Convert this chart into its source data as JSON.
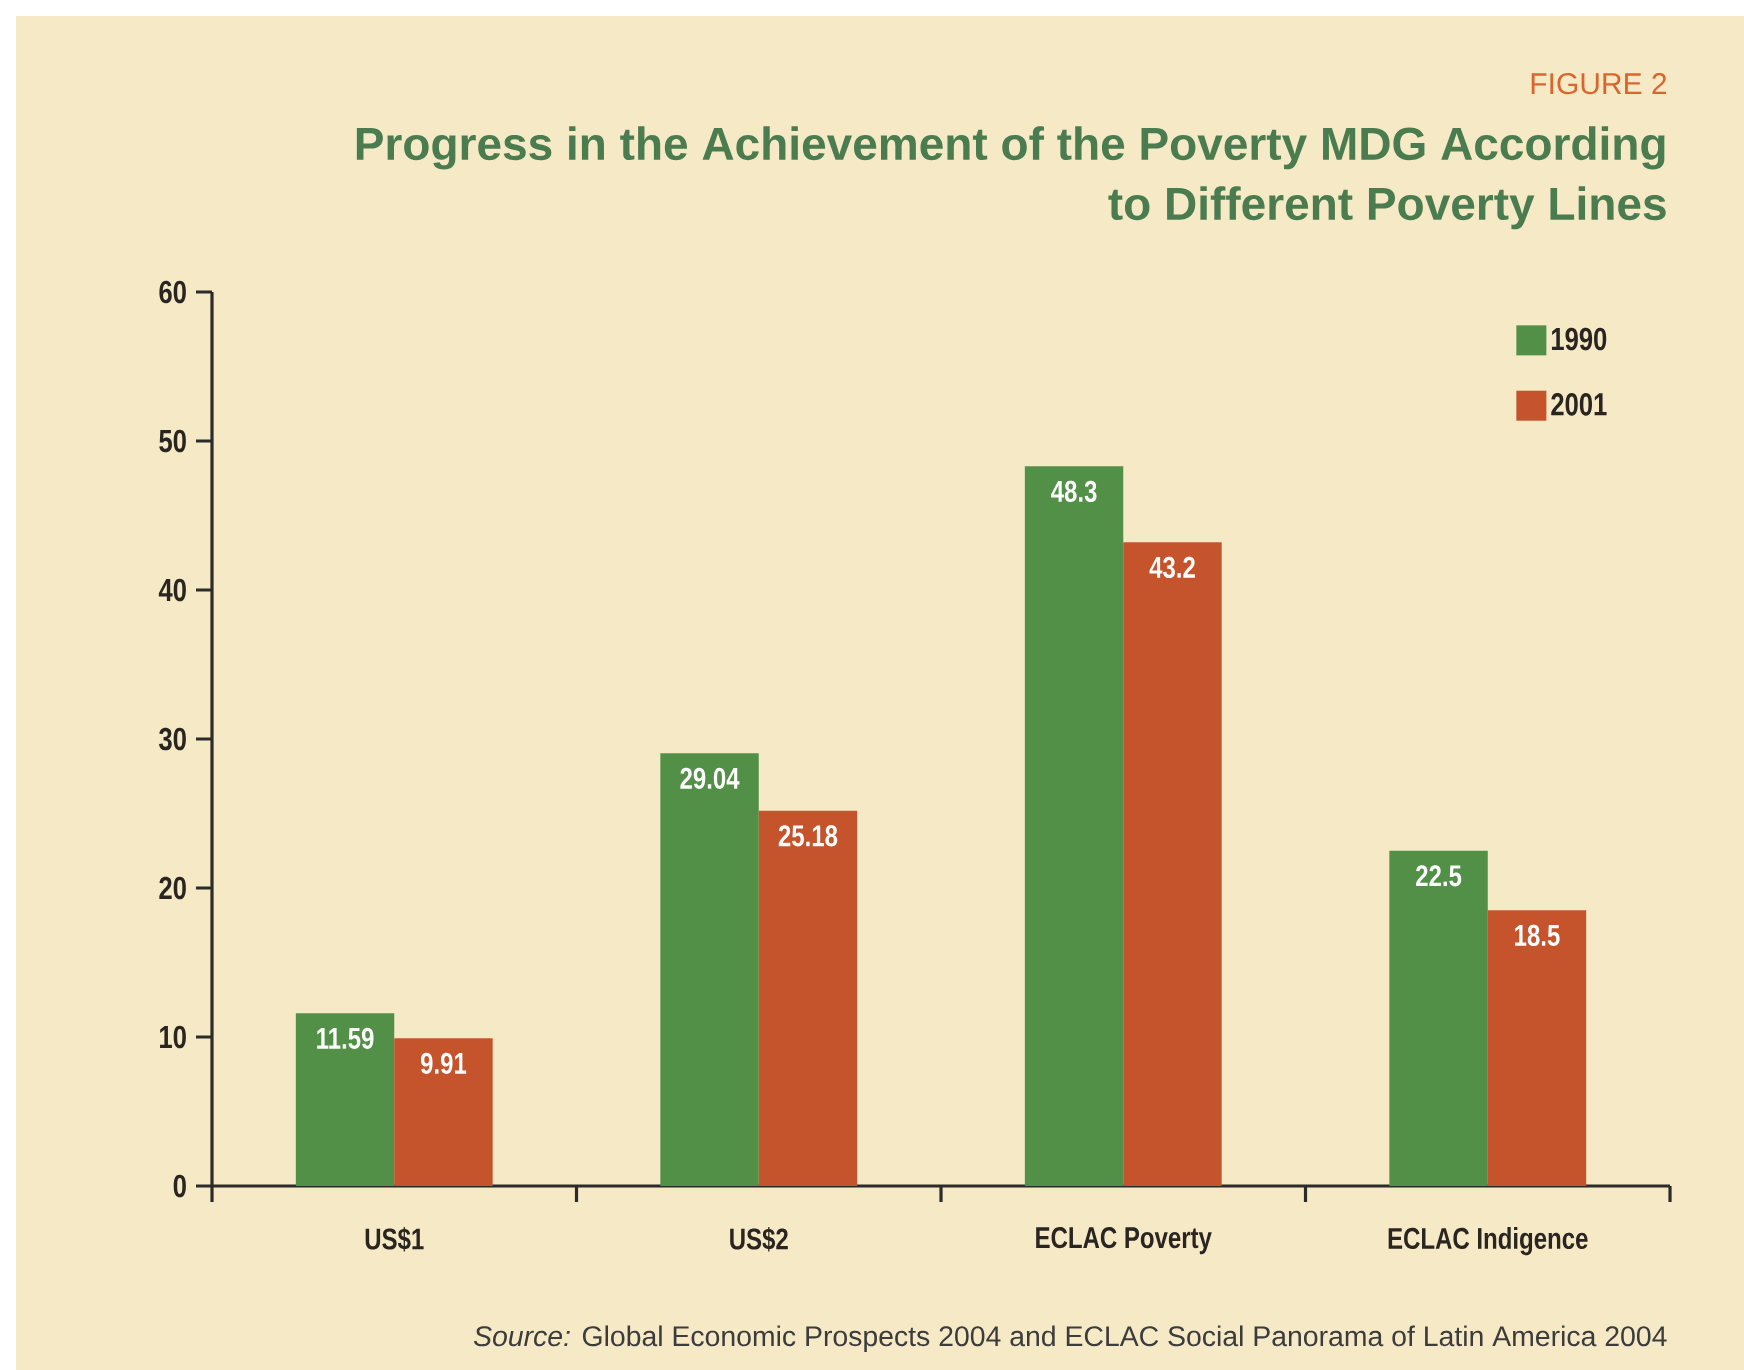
{
  "chart_data": {
    "type": "bar",
    "title": "Progress in the Achievement of the Poverty MDG According to Different Poverty Lines",
    "annotations": [
      "FIGURE 2",
      "*Source:* Global Economic Prospects 2004 and ECLAC Social Panorama of Latin America 2004"
    ],
    "categories": [
      "US$1",
      "US$2",
      "ECLAC Poverty",
      "ECLAC Indigence"
    ],
    "series": [
      {
        "name": "1990",
        "color": "#528f47",
        "values": [
          11.59,
          29.04,
          48.3,
          22.5
        ]
      },
      {
        "name": "2001",
        "color": "#c5532c",
        "values": [
          9.91,
          25.18,
          43.2,
          18.5
        ]
      }
    ],
    "ylim": [
      0,
      60
    ],
    "yticks": [
      0,
      10,
      20,
      30,
      40,
      50,
      60
    ],
    "data_labels": true,
    "legend": "top right"
  }
}
